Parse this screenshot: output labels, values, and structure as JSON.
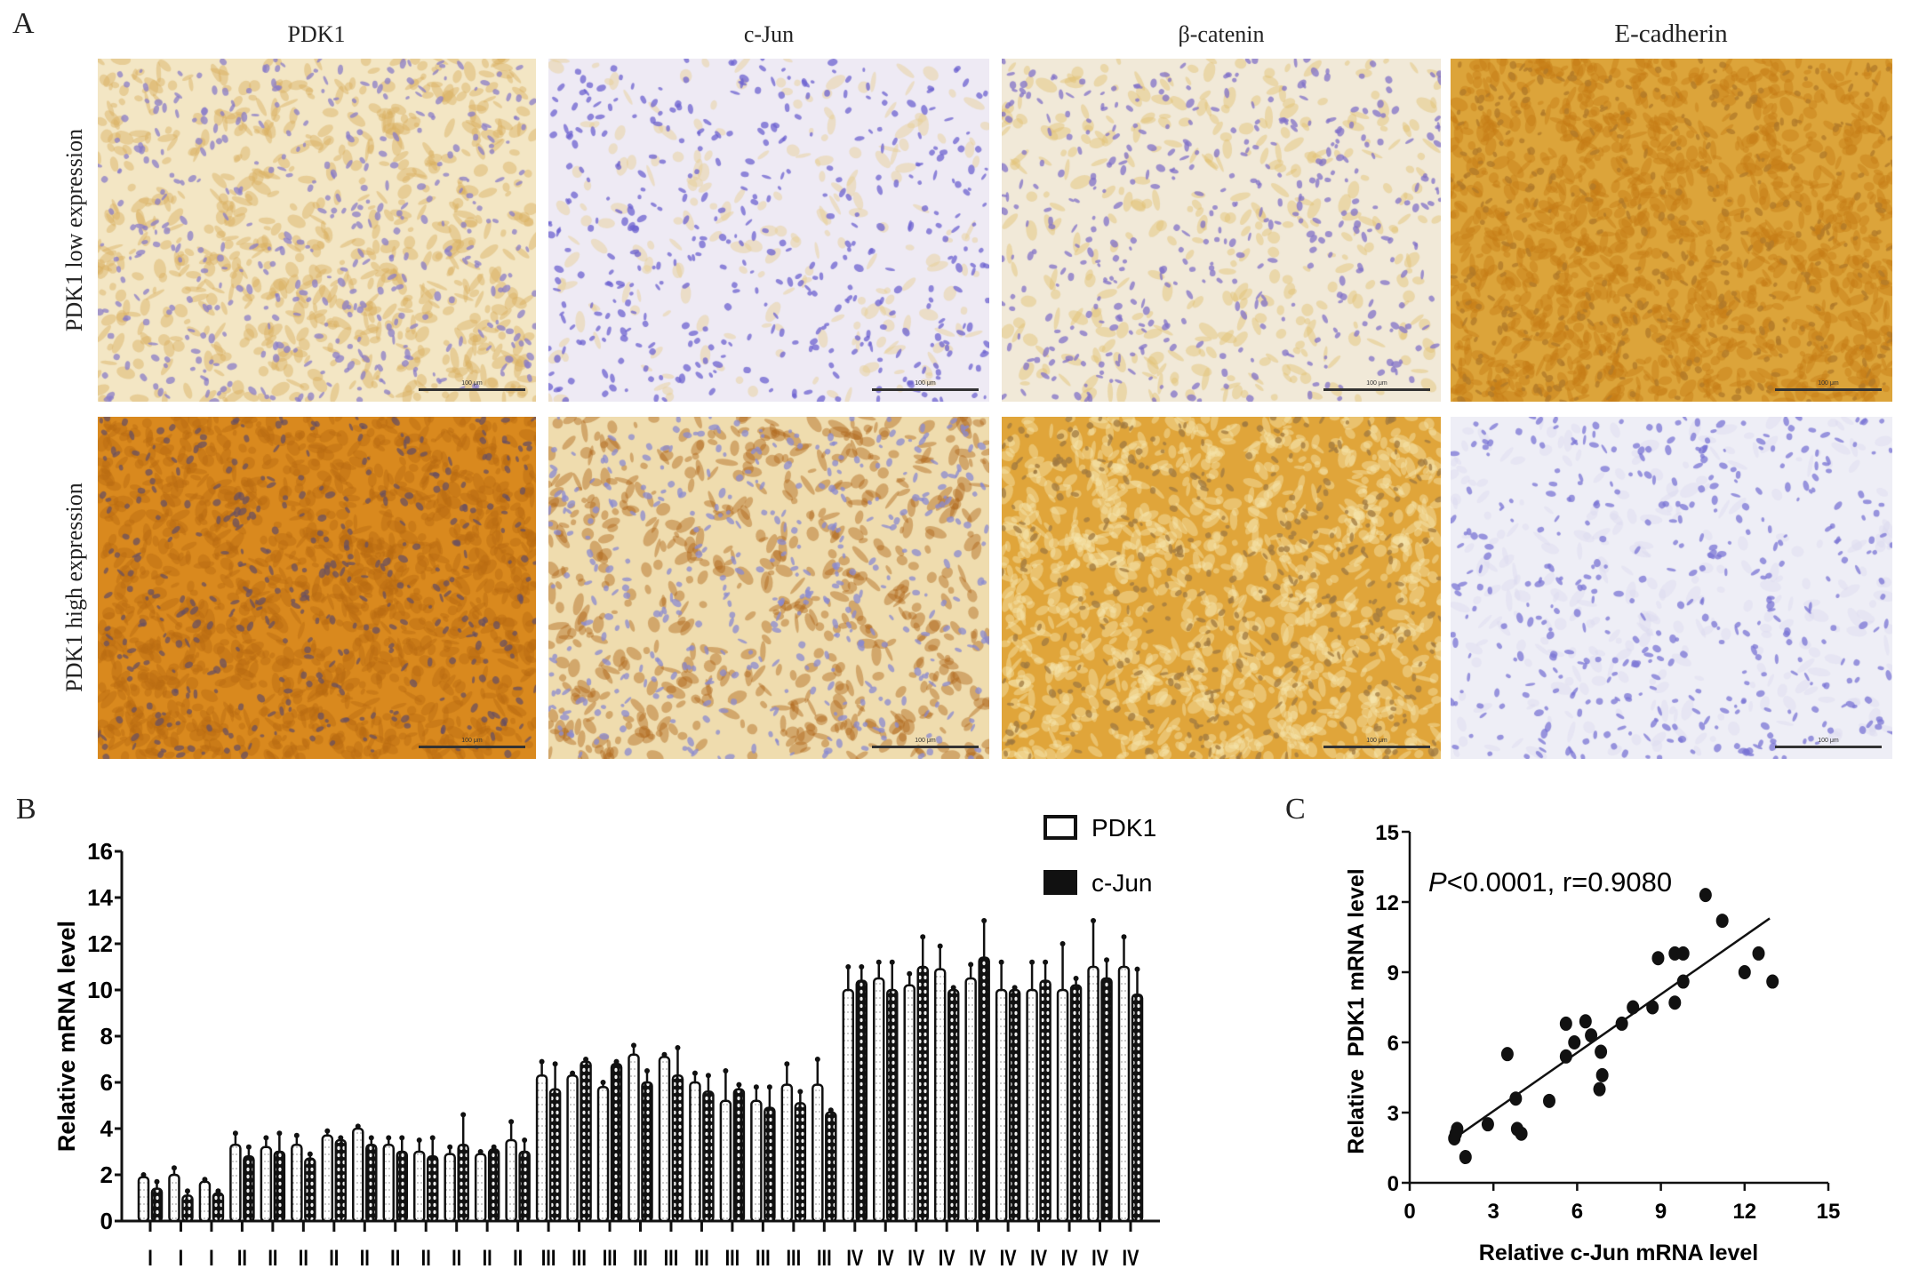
{
  "panel_a": {
    "letter": "A",
    "columns": [
      "PDK1",
      "c-Jun",
      "β-catenin",
      "E-cadherin"
    ],
    "rows": [
      "PDK1 low expression",
      "PDK1 high expression"
    ],
    "scale_bar_label": "100 μm",
    "images": [
      {
        "row": 0,
        "col": 0,
        "bg": "#f3e6c4",
        "stain": "#d9b060",
        "nuclei": "#8a7cc8",
        "stain_density": 0.5
      },
      {
        "row": 0,
        "col": 1,
        "bg": "#eeeaf4",
        "stain": "#e6cf90",
        "nuclei": "#6c62d0",
        "stain_density": 0.15
      },
      {
        "row": 0,
        "col": 2,
        "bg": "#f1e9d8",
        "stain": "#e2c070",
        "nuclei": "#8070c8",
        "stain_density": 0.25
      },
      {
        "row": 0,
        "col": 3,
        "bg": "#dca43a",
        "stain": "#c57d16",
        "nuclei": "#b07a2a",
        "stain_density": 0.9
      },
      {
        "row": 1,
        "col": 0,
        "bg": "#d9891e",
        "stain": "#b86a12",
        "nuclei": "#6a5060",
        "stain_density": 0.9
      },
      {
        "row": 1,
        "col": 1,
        "bg": "#efdcae",
        "stain": "#b0651a",
        "nuclei": "#8a8ad0",
        "stain_density": 0.45
      },
      {
        "row": 1,
        "col": 2,
        "bg": "#e0a53a",
        "stain": "#f6e6b0",
        "nuclei": "#a07a40",
        "stain_density": 0.8
      },
      {
        "row": 1,
        "col": 3,
        "bg": "#eeeef6",
        "stain": "#dcdaf0",
        "nuclei": "#7a74d4",
        "stain_density": 0.2
      }
    ]
  },
  "panel_b": {
    "letter": "B"
  },
  "panel_c": {
    "letter": "C"
  },
  "chart_data": [
    {
      "type": "bar",
      "ylabel": "Relative mRNA level",
      "xlabel": "",
      "ylim": [
        0,
        16
      ],
      "yticks": [
        0,
        2,
        4,
        6,
        8,
        10,
        12,
        14,
        16
      ],
      "legend_position": "top-right",
      "categories": [
        "I",
        "I",
        "I",
        "II",
        "II",
        "II",
        "II",
        "II",
        "II",
        "II",
        "II",
        "II",
        "II",
        "III",
        "III",
        "III",
        "III",
        "III",
        "III",
        "III",
        "III",
        "III",
        "III",
        "IV",
        "IV",
        "IV",
        "IV",
        "IV",
        "IV",
        "IV",
        "IV",
        "IV",
        "IV"
      ],
      "series": [
        {
          "name": "PDK1",
          "values": [
            1.9,
            2.0,
            1.7,
            3.3,
            3.2,
            3.3,
            3.7,
            4.0,
            3.3,
            3.0,
            2.9,
            2.9,
            3.5,
            6.3,
            6.3,
            5.8,
            7.2,
            7.1,
            6.0,
            5.2,
            5.2,
            5.9,
            5.9,
            10.0,
            10.5,
            10.2,
            10.9,
            10.5,
            10.0,
            10.0,
            10.0,
            11.0,
            11.0
          ],
          "errors": [
            0.1,
            0.3,
            0.1,
            0.5,
            0.4,
            0.4,
            0.2,
            0.1,
            0.3,
            0.5,
            0.3,
            0.1,
            0.8,
            0.6,
            0.1,
            0.2,
            0.4,
            0.1,
            0.4,
            1.3,
            0.6,
            0.9,
            1.1,
            1.0,
            0.7,
            0.5,
            1.0,
            0.6,
            1.2,
            1.2,
            2.0,
            2.0,
            1.3
          ]
        },
        {
          "name": "c-Jun",
          "values": [
            1.4,
            1.1,
            1.2,
            2.8,
            3.0,
            2.7,
            3.5,
            3.3,
            3.0,
            2.8,
            3.3,
            3.1,
            3.0,
            5.7,
            6.9,
            6.8,
            6.0,
            6.3,
            5.6,
            5.7,
            4.9,
            5.1,
            4.7,
            10.4,
            10.0,
            11.0,
            10.0,
            11.4,
            10.0,
            10.4,
            10.2,
            10.5,
            9.8
          ],
          "errors": [
            0.3,
            0.2,
            0.1,
            0.4,
            0.8,
            0.2,
            0.1,
            0.3,
            0.6,
            0.8,
            1.3,
            0.1,
            0.5,
            1.1,
            0.1,
            0.1,
            0.5,
            1.2,
            0.7,
            0.2,
            0.9,
            0.5,
            0.1,
            0.6,
            1.2,
            1.3,
            0.1,
            1.6,
            0.1,
            0.8,
            0.3,
            0.8,
            1.1
          ]
        }
      ]
    },
    {
      "type": "scatter",
      "xlabel": "Relative c-Jun mRNA level",
      "ylabel": "Relative  PDK1 mRNA level",
      "xlim": [
        0,
        15
      ],
      "ylim": [
        0,
        15
      ],
      "xticks": [
        0,
        3,
        6,
        9,
        12,
        15
      ],
      "yticks": [
        0,
        3,
        6,
        9,
        12,
        15
      ],
      "annotation": {
        "p_symbol": "P",
        "rest": "<0.0001, r=0.9080"
      },
      "points": [
        [
          1.6,
          1.9
        ],
        [
          1.7,
          2.3
        ],
        [
          1.65,
          2.1
        ],
        [
          2.0,
          1.1
        ],
        [
          2.8,
          2.5
        ],
        [
          3.5,
          5.5
        ],
        [
          3.8,
          3.6
        ],
        [
          3.85,
          2.3
        ],
        [
          4.0,
          2.1
        ],
        [
          5.0,
          3.5
        ],
        [
          5.6,
          6.8
        ],
        [
          5.6,
          5.4
        ],
        [
          5.9,
          6.0
        ],
        [
          6.3,
          6.9
        ],
        [
          6.5,
          6.3
        ],
        [
          6.85,
          5.6
        ],
        [
          6.9,
          4.6
        ],
        [
          6.8,
          4.0
        ],
        [
          7.6,
          6.8
        ],
        [
          8.0,
          7.5
        ],
        [
          8.7,
          7.5
        ],
        [
          8.9,
          9.6
        ],
        [
          9.5,
          7.7
        ],
        [
          9.5,
          9.8
        ],
        [
          9.8,
          9.8
        ],
        [
          9.8,
          8.6
        ],
        [
          10.6,
          12.3
        ],
        [
          11.2,
          11.2
        ],
        [
          12.0,
          9.0
        ],
        [
          12.5,
          9.8
        ],
        [
          13.0,
          8.6
        ]
      ],
      "fit_line": [
        [
          1.6,
          1.9
        ],
        [
          12.9,
          11.3
        ]
      ]
    }
  ]
}
